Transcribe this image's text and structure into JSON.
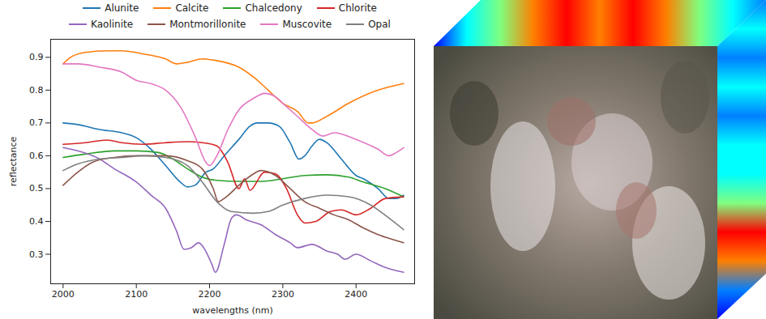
{
  "chart_data": {
    "type": "line",
    "x_label": "wavelengths (nm)",
    "y_label": "reflectance",
    "xlim": [
      1983,
      2480
    ],
    "ylim": [
      0.21,
      0.955
    ],
    "xticks": [
      2000,
      2100,
      2200,
      2300,
      2400
    ],
    "yticks": [
      0.3,
      0.4,
      0.5,
      0.6,
      0.7,
      0.8,
      0.9
    ],
    "grid": false,
    "legend": "top",
    "series": [
      {
        "name": "Alunite",
        "color": "#1f77b4",
        "x": [
          2000,
          2020,
          2050,
          2080,
          2100,
          2120,
          2140,
          2160,
          2170,
          2180,
          2195,
          2205,
          2220,
          2240,
          2255,
          2265,
          2280,
          2295,
          2310,
          2322,
          2330,
          2340,
          2350,
          2360,
          2380,
          2400,
          2410,
          2430,
          2445,
          2455,
          2465
        ],
        "values": [
          0.7,
          0.695,
          0.68,
          0.67,
          0.655,
          0.62,
          0.57,
          0.52,
          0.505,
          0.51,
          0.55,
          0.56,
          0.6,
          0.65,
          0.69,
          0.7,
          0.7,
          0.69,
          0.64,
          0.59,
          0.6,
          0.63,
          0.65,
          0.64,
          0.59,
          0.54,
          0.53,
          0.5,
          0.47,
          0.47,
          0.48
        ]
      },
      {
        "name": "Calcite",
        "color": "#ff7f0e",
        "x": [
          2000,
          2010,
          2030,
          2060,
          2080,
          2110,
          2140,
          2155,
          2170,
          2190,
          2210,
          2240,
          2260,
          2280,
          2300,
          2320,
          2335,
          2340,
          2360,
          2390,
          2430,
          2465
        ],
        "values": [
          0.88,
          0.9,
          0.915,
          0.92,
          0.92,
          0.91,
          0.895,
          0.88,
          0.885,
          0.895,
          0.89,
          0.87,
          0.84,
          0.8,
          0.76,
          0.735,
          0.7,
          0.7,
          0.72,
          0.76,
          0.8,
          0.82
        ]
      },
      {
        "name": "Chalcedony",
        "color": "#2ca02c",
        "x": [
          2000,
          2030,
          2070,
          2100,
          2130,
          2150,
          2170,
          2190,
          2210,
          2240,
          2270,
          2300,
          2330,
          2360,
          2390,
          2410,
          2440,
          2465
        ],
        "values": [
          0.595,
          0.605,
          0.615,
          0.615,
          0.61,
          0.59,
          0.56,
          0.535,
          0.525,
          0.522,
          0.522,
          0.53,
          0.54,
          0.542,
          0.535,
          0.52,
          0.5,
          0.475
        ]
      },
      {
        "name": "Chlorite",
        "color": "#d62728",
        "x": [
          2000,
          2030,
          2060,
          2080,
          2110,
          2140,
          2170,
          2190,
          2210,
          2225,
          2240,
          2248,
          2255,
          2275,
          2290,
          2305,
          2320,
          2330,
          2345,
          2365,
          2380,
          2400,
          2420,
          2440,
          2465
        ],
        "values": [
          0.635,
          0.64,
          0.648,
          0.64,
          0.635,
          0.64,
          0.643,
          0.64,
          0.63,
          0.58,
          0.5,
          0.53,
          0.495,
          0.55,
          0.545,
          0.5,
          0.42,
          0.395,
          0.4,
          0.43,
          0.435,
          0.42,
          0.44,
          0.47,
          0.475
        ]
      },
      {
        "name": "Kaolinite",
        "color": "#9467bd",
        "x": [
          2000,
          2020,
          2050,
          2070,
          2090,
          2100,
          2120,
          2140,
          2155,
          2165,
          2175,
          2185,
          2192,
          2203,
          2208,
          2220,
          2230,
          2237,
          2250,
          2270,
          2290,
          2310,
          2320,
          2340,
          2360,
          2375,
          2385,
          2400,
          2420,
          2440,
          2465
        ],
        "values": [
          0.625,
          0.615,
          0.59,
          0.56,
          0.535,
          0.52,
          0.48,
          0.44,
          0.37,
          0.315,
          0.32,
          0.335,
          0.32,
          0.27,
          0.245,
          0.33,
          0.41,
          0.42,
          0.405,
          0.39,
          0.36,
          0.335,
          0.32,
          0.33,
          0.31,
          0.3,
          0.285,
          0.3,
          0.28,
          0.26,
          0.245
        ]
      },
      {
        "name": "Montmorillonite",
        "color": "#8c564b",
        "x": [
          2000,
          2020,
          2040,
          2070,
          2100,
          2140,
          2170,
          2190,
          2205,
          2212,
          2220,
          2240,
          2260,
          2270,
          2290,
          2310,
          2330,
          2350,
          2370,
          2390,
          2410,
          2430,
          2450,
          2465
        ],
        "values": [
          0.51,
          0.55,
          0.58,
          0.595,
          0.6,
          0.6,
          0.585,
          0.56,
          0.5,
          0.46,
          0.47,
          0.51,
          0.545,
          0.555,
          0.54,
          0.5,
          0.46,
          0.44,
          0.42,
          0.405,
          0.38,
          0.36,
          0.345,
          0.335
        ]
      },
      {
        "name": "Muscovite",
        "color": "#e377c2",
        "x": [
          2000,
          2020,
          2050,
          2080,
          2100,
          2120,
          2140,
          2160,
          2180,
          2195,
          2200,
          2210,
          2225,
          2240,
          2260,
          2275,
          2290,
          2300,
          2320,
          2340,
          2355,
          2370,
          2400,
          2430,
          2445,
          2455,
          2465
        ],
        "values": [
          0.88,
          0.88,
          0.87,
          0.855,
          0.83,
          0.82,
          0.8,
          0.75,
          0.66,
          0.58,
          0.57,
          0.6,
          0.68,
          0.74,
          0.775,
          0.79,
          0.78,
          0.76,
          0.72,
          0.68,
          0.66,
          0.67,
          0.65,
          0.62,
          0.6,
          0.61,
          0.625
        ]
      },
      {
        "name": "Opal",
        "color": "#7f7f7f",
        "x": [
          2000,
          2020,
          2050,
          2080,
          2110,
          2140,
          2170,
          2190,
          2210,
          2230,
          2260,
          2280,
          2300,
          2330,
          2360,
          2390,
          2420,
          2445,
          2465
        ],
        "values": [
          0.555,
          0.575,
          0.59,
          0.595,
          0.6,
          0.595,
          0.57,
          0.52,
          0.46,
          0.43,
          0.425,
          0.43,
          0.45,
          0.47,
          0.48,
          0.475,
          0.45,
          0.41,
          0.375
        ]
      }
    ]
  }
}
